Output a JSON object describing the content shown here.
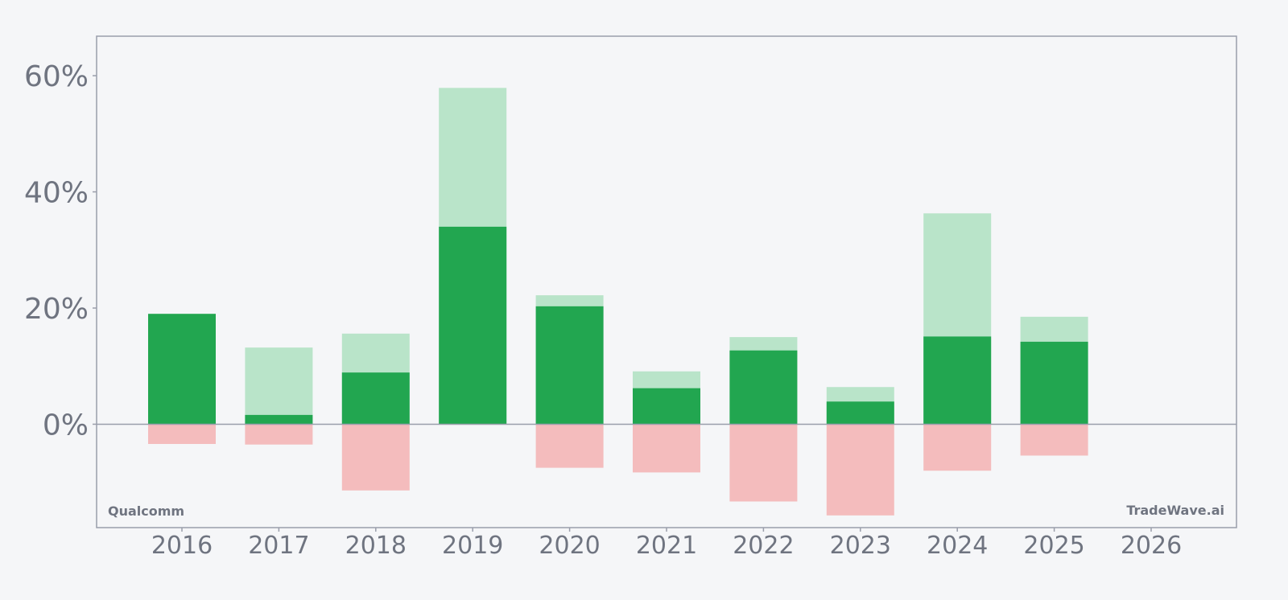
{
  "chart_data": {
    "type": "bar",
    "title": "",
    "xlabel": "",
    "ylabel": "",
    "categories": [
      "2016",
      "2017",
      "2018",
      "2019",
      "2020",
      "2021",
      "2022",
      "2023",
      "2024",
      "2025",
      "2026"
    ],
    "series": [
      {
        "values": [
          19.0,
          1.6,
          8.9,
          34.0,
          20.3,
          6.2,
          12.7,
          3.9,
          15.1,
          14.2,
          null
        ]
      },
      {
        "values": [
          19.0,
          13.2,
          15.6,
          57.9,
          22.2,
          9.1,
          15.0,
          6.4,
          36.3,
          18.5,
          null
        ]
      },
      {
        "values": [
          -3.4,
          -3.5,
          -11.4,
          0,
          -7.5,
          -8.3,
          -13.3,
          -15.7,
          -8.0,
          -5.4,
          null
        ]
      }
    ],
    "ylim": [
      -17.8,
      66.8
    ],
    "yticks": [
      0,
      20,
      40,
      60
    ],
    "ytick_labels": [
      "0%",
      "20%",
      "40%",
      "60%"
    ],
    "grid": false,
    "legend": "none",
    "colors": {
      "dark_green": "#22a650",
      "light_green": "#b9e4c9",
      "light_red": "#f4bcbd",
      "axis": "#9a9eab",
      "text": "#6f7480",
      "background": "#f5f6f8"
    },
    "watermarks": {
      "left": "Qualcomm",
      "right": "TradeWave.ai"
    }
  }
}
